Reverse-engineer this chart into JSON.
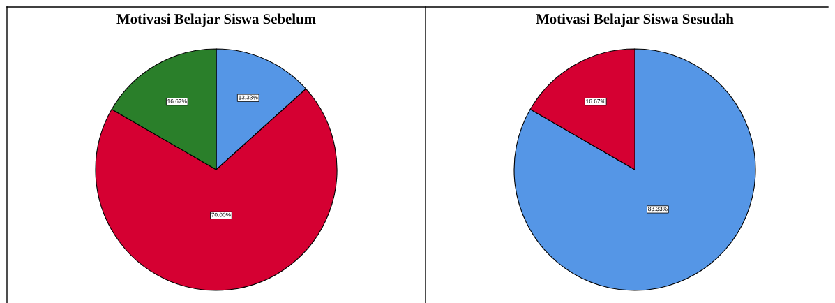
{
  "chart_data": [
    {
      "type": "pie",
      "title": "Motivasi Belajar Siswa Sebelum",
      "categories": [
        null,
        null,
        null
      ],
      "values": [
        13.33,
        70.0,
        16.67
      ],
      "colors": [
        "#5596e6",
        "#d50032",
        "#2a7f2a"
      ],
      "value_labels": [
        "13.33%",
        "70.00%",
        "16.67%"
      ]
    },
    {
      "type": "pie",
      "title": "Motivasi Belajar Siswa Sesudah",
      "categories": [
        null,
        null
      ],
      "values": [
        83.33,
        16.67
      ],
      "colors": [
        "#5596e6",
        "#d50032"
      ],
      "value_labels": [
        "83.33%",
        "16.67%"
      ]
    }
  ]
}
